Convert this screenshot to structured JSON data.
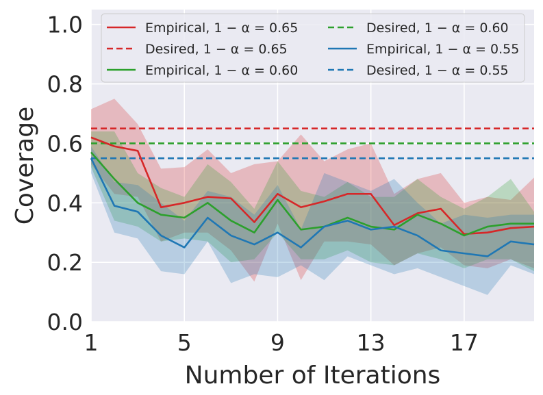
{
  "chart_data": {
    "type": "line",
    "title": "",
    "xlabel": "Number of Iterations",
    "ylabel": "Coverage",
    "xlim": [
      1,
      20
    ],
    "ylim": [
      0.0,
      1.05
    ],
    "xticks": [
      1,
      5,
      9,
      13,
      17
    ],
    "xtick_labels": [
      "1",
      "5",
      "9",
      "13",
      "17"
    ],
    "yticks": [
      0.0,
      0.2,
      0.4,
      0.6,
      0.8,
      1.0
    ],
    "ytick_labels": [
      "0.0",
      "0.2",
      "0.4",
      "0.6",
      "0.8",
      "1.0"
    ],
    "grid": true,
    "legend_position": "top",
    "x": [
      1,
      2,
      3,
      4,
      5,
      6,
      7,
      8,
      9,
      10,
      11,
      12,
      13,
      14,
      15,
      16,
      17,
      18,
      19,
      20
    ],
    "series": [
      {
        "name": "Empirical, 1 − α = 0.65",
        "kind": "empirical",
        "color": "#d62728",
        "values": [
          0.62,
          0.59,
          0.575,
          0.385,
          0.4,
          0.42,
          0.415,
          0.335,
          0.43,
          0.385,
          0.405,
          0.43,
          0.43,
          0.325,
          0.365,
          0.38,
          0.295,
          0.3,
          0.315,
          0.32
        ],
        "lower": [
          0.53,
          0.43,
          0.42,
          0.27,
          0.3,
          0.3,
          0.24,
          0.135,
          0.33,
          0.14,
          0.27,
          0.27,
          0.26,
          0.19,
          0.23,
          0.25,
          0.19,
          0.18,
          0.21,
          0.18
        ],
        "upper": [
          0.715,
          0.75,
          0.665,
          0.515,
          0.52,
          0.58,
          0.5,
          0.53,
          0.54,
          0.63,
          0.54,
          0.58,
          0.6,
          0.43,
          0.48,
          0.5,
          0.4,
          0.42,
          0.41,
          0.485
        ]
      },
      {
        "name": "Desired, 1 − α = 0.65",
        "kind": "desired",
        "color": "#d62728",
        "constant": 0.65
      },
      {
        "name": "Empirical, 1 − α = 0.60",
        "kind": "empirical",
        "color": "#2ca02c",
        "values": [
          0.57,
          0.48,
          0.4,
          0.36,
          0.35,
          0.4,
          0.34,
          0.3,
          0.41,
          0.31,
          0.32,
          0.35,
          0.32,
          0.31,
          0.36,
          0.33,
          0.29,
          0.32,
          0.33,
          0.33
        ],
        "lower": [
          0.52,
          0.34,
          0.32,
          0.27,
          0.28,
          0.27,
          0.2,
          0.21,
          0.3,
          0.21,
          0.21,
          0.24,
          0.2,
          0.19,
          0.23,
          0.21,
          0.18,
          0.21,
          0.21,
          0.17
        ],
        "upper": [
          0.64,
          0.64,
          0.5,
          0.45,
          0.42,
          0.53,
          0.47,
          0.38,
          0.54,
          0.44,
          0.42,
          0.47,
          0.42,
          0.42,
          0.48,
          0.42,
          0.38,
          0.42,
          0.48,
          0.37
        ]
      },
      {
        "name": "Desired, 1 − α = 0.60",
        "kind": "desired",
        "color": "#2ca02c",
        "constant": 0.6
      },
      {
        "name": "Empirical, 1 − α = 0.55",
        "kind": "empirical",
        "color": "#1f77b4",
        "values": [
          0.55,
          0.39,
          0.37,
          0.29,
          0.25,
          0.35,
          0.29,
          0.26,
          0.3,
          0.25,
          0.32,
          0.34,
          0.31,
          0.32,
          0.29,
          0.24,
          0.23,
          0.22,
          0.27,
          0.26
        ],
        "lower": [
          0.5,
          0.3,
          0.28,
          0.17,
          0.16,
          0.27,
          0.13,
          0.16,
          0.15,
          0.19,
          0.14,
          0.22,
          0.19,
          0.16,
          0.18,
          0.15,
          0.12,
          0.09,
          0.19,
          0.16
        ],
        "upper": [
          0.59,
          0.47,
          0.46,
          0.4,
          0.34,
          0.44,
          0.42,
          0.36,
          0.46,
          0.31,
          0.5,
          0.47,
          0.44,
          0.48,
          0.4,
          0.33,
          0.36,
          0.35,
          0.36,
          0.36
        ]
      },
      {
        "name": "Desired, 1 − α = 0.55",
        "kind": "desired",
        "color": "#1f77b4",
        "constant": 0.55
      }
    ],
    "legend": {
      "items": [
        {
          "label": "Empirical, 1 − α = 0.65",
          "color": "#d62728",
          "style": "solid"
        },
        {
          "label": "Desired, 1 − α = 0.65",
          "color": "#d62728",
          "style": "dashed"
        },
        {
          "label": "Empirical, 1 − α = 0.60",
          "color": "#2ca02c",
          "style": "solid"
        },
        {
          "label": "Desired, 1 − α = 0.60",
          "color": "#2ca02c",
          "style": "dashed"
        },
        {
          "label": "Empirical, 1 − α = 0.55",
          "color": "#1f77b4",
          "style": "solid"
        },
        {
          "label": "Desired, 1 − α = 0.55",
          "color": "#1f77b4",
          "style": "dashed"
        }
      ]
    },
    "colors": {
      "plot_background": "#eaeaf2",
      "grid": "#ffffff",
      "text": "#262626"
    }
  }
}
